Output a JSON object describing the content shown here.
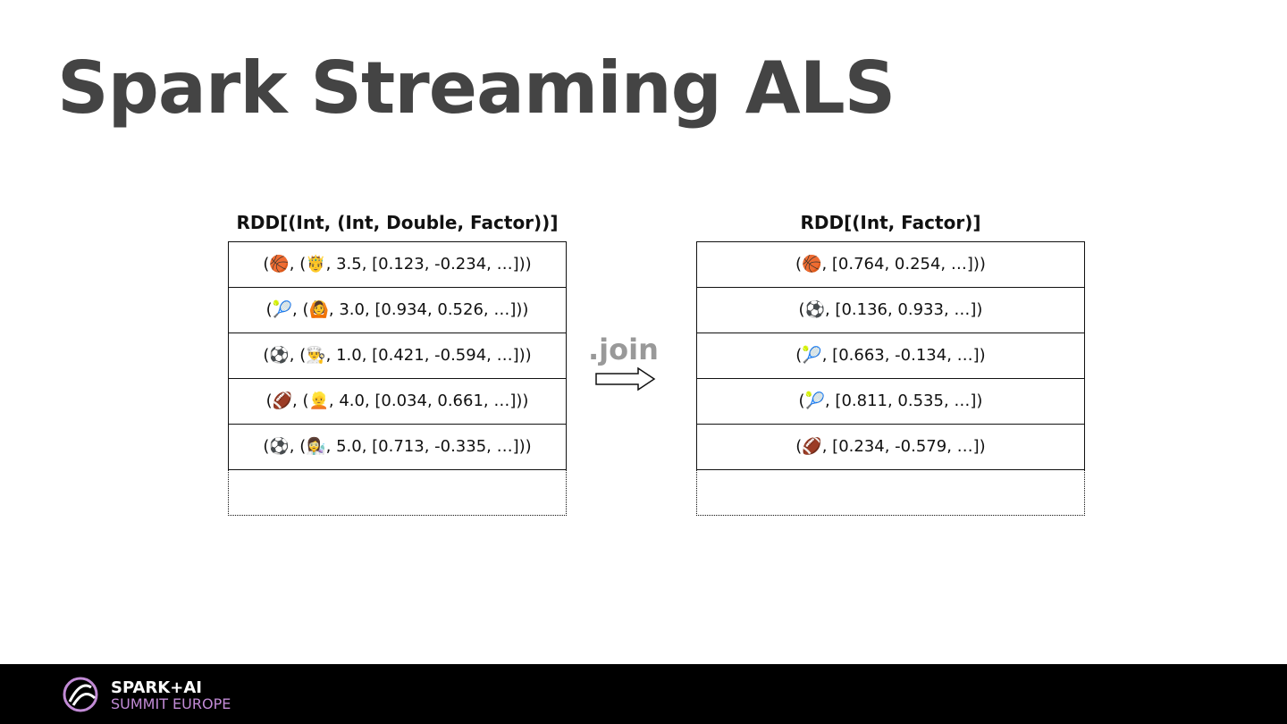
{
  "title": "Spark Streaming ALS",
  "left": {
    "header": "RDD[(Int, (Int, Double, Factor))]",
    "rows": [
      "(🏀, (🤴, 3.5, [0.123, -0.234, …]))",
      "(🎾, (🙆, 3.0, [0.934, 0.526, …]))",
      "(⚽, (👨‍🍳, 1.0, [0.421, -0.594, …]))",
      "(🏈, (👱, 4.0, [0.034, 0.661, …]))",
      "(⚽, (👩‍🔬, 5.0, [0.713, -0.335, …]))"
    ]
  },
  "operation": ".join",
  "right": {
    "header": "RDD[(Int, Factor)]",
    "rows": [
      "(🏀, [0.764, 0.254, …]))",
      "(⚽, [0.136, 0.933, …])",
      "(🎾, [0.663, -0.134, …])",
      "(🎾, [0.811, 0.535, …])",
      "(🏈, [0.234, -0.579, …])"
    ]
  },
  "footer": {
    "brand": "SPARK+AI",
    "event": "SUMMIT EUROPE"
  }
}
